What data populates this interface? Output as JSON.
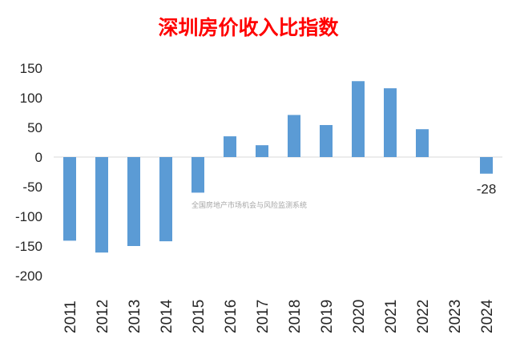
{
  "chart_data": {
    "type": "bar",
    "title": "深圳房价收入比指数",
    "categories": [
      "2011",
      "2012",
      "2013",
      "2014",
      "2015",
      "2016",
      "2017",
      "2018",
      "2019",
      "2020",
      "2021",
      "2022",
      "2023",
      "2024"
    ],
    "values": [
      -141,
      -161,
      -150,
      -142,
      -60,
      35,
      20,
      71,
      54,
      128,
      116,
      47,
      null,
      -28
    ],
    "data_labels": {
      "2024": "-28"
    },
    "ylim": [
      -200,
      150
    ],
    "yticks": [
      150,
      100,
      50,
      0,
      -50,
      -100,
      -150,
      -200
    ],
    "xlabel": "",
    "ylabel": "",
    "grid": false,
    "legend": "none",
    "bar_color": "#5b9bd5",
    "title_color": "#ff0000"
  },
  "watermark": "全国房地产市场机会与风险监测系统"
}
